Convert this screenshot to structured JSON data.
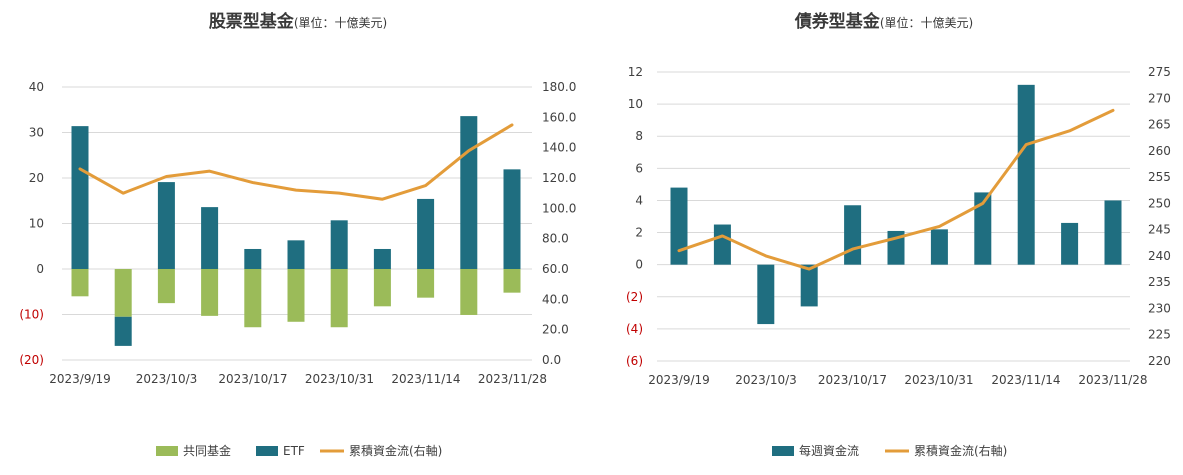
{
  "chart_data": [
    {
      "type": "bar",
      "title": "股票型基金",
      "subtitle": "(單位：十億美元)",
      "x_tick_labels": [
        "2023/9/19",
        "2023/10/3",
        "2023/10/17",
        "2023/10/31",
        "2023/11/14",
        "2023/11/28"
      ],
      "y_left_ticks": [
        "40",
        "30",
        "20",
        "10",
        "0",
        "(10)",
        "(20)"
      ],
      "y_left_range": [
        -20,
        40
      ],
      "y_right_ticks": [
        "180.0",
        "160.0",
        "140.0",
        "120.0",
        "100.0",
        "80.0",
        "60.0",
        "40.0",
        "20.0",
        "0.0"
      ],
      "y_right_range": [
        0,
        180
      ],
      "grid": true,
      "legend_position": "bottom",
      "series": [
        {
          "name": "共同基金",
          "type": "bar",
          "axis": "left",
          "color": "#9bbb59",
          "values": [
            -6,
            -10.5,
            -7.5,
            -10.3,
            -12.8,
            -11.6,
            -12.8,
            -8.2,
            -6.3,
            -10.1,
            -5.2
          ]
        },
        {
          "name": "ETF",
          "type": "bar",
          "axis": "left",
          "color": "#1f6e80",
          "values": [
            31.4,
            -16.9,
            19.1,
            13.6,
            4.4,
            6.3,
            10.7,
            4.4,
            15.4,
            33.6,
            21.9
          ]
        },
        {
          "name": "累積資金流(右軸)",
          "type": "line",
          "axis": "right",
          "color": "#e39c3a",
          "values": [
            126,
            110,
            121,
            124.5,
            117,
            112,
            110,
            106,
            115,
            138,
            155
          ]
        }
      ]
    },
    {
      "type": "bar",
      "title": "債券型基金",
      "subtitle": "(單位：十億美元)",
      "x_tick_labels": [
        "2023/9/19",
        "2023/10/3",
        "2023/10/17",
        "2023/10/31",
        "2023/11/14",
        "2023/11/28"
      ],
      "y_left_ticks": [
        "12",
        "10",
        "8",
        "6",
        "4",
        "2",
        "0",
        "(2)",
        "(4)",
        "(6)"
      ],
      "y_left_range": [
        -6,
        12
      ],
      "y_right_ticks": [
        "275",
        "270",
        "265",
        "260",
        "255",
        "250",
        "245",
        "240",
        "235",
        "230",
        "225",
        "220"
      ],
      "y_right_range": [
        220,
        275
      ],
      "grid": true,
      "legend_position": "bottom",
      "series": [
        {
          "name": "每週資金流",
          "type": "bar",
          "axis": "left",
          "color": "#1f6e80",
          "values": [
            4.8,
            2.5,
            -3.7,
            -2.6,
            3.7,
            2.1,
            2.2,
            4.5,
            11.2,
            2.6,
            4.0
          ]
        },
        {
          "name": "累積資金流(右軸)",
          "type": "line",
          "axis": "right",
          "color": "#e39c3a",
          "values": [
            241,
            243.8,
            240,
            237.5,
            241.3,
            243.4,
            245.6,
            250,
            261.2,
            263.8,
            267.7
          ]
        }
      ]
    }
  ]
}
